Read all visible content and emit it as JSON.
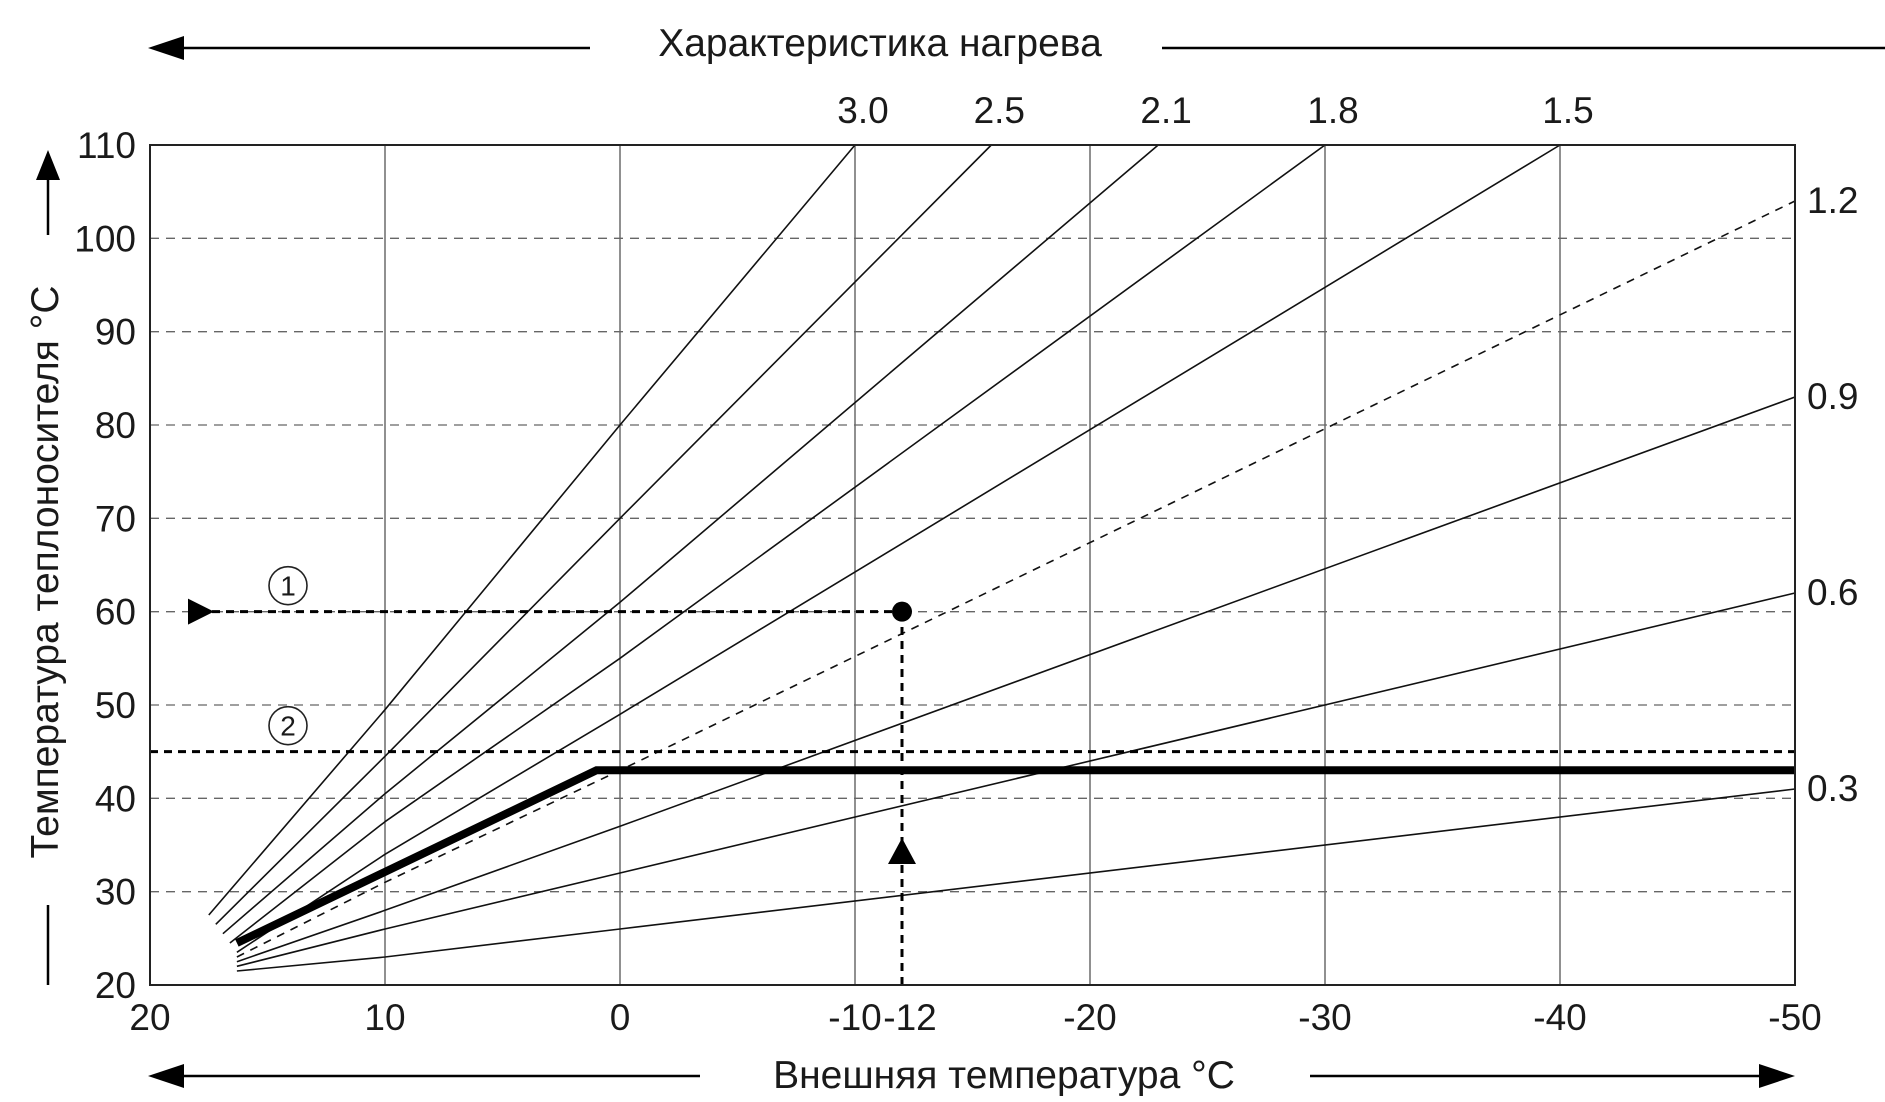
{
  "chart_data": {
    "type": "line",
    "title": "Характеристика нагрева",
    "xlabel": "Внешняя температура °C",
    "ylabel": "Температура теплоносителя °C",
    "xlim": [
      20,
      -50
    ],
    "ylim": [
      20,
      110
    ],
    "x_ticks": [
      20,
      10,
      0,
      -10,
      -20,
      -30,
      -40,
      -50
    ],
    "x_tick_labels": [
      "20",
      "10",
      "0",
      "-10",
      "-20",
      "-30",
      "-40",
      "-50"
    ],
    "extra_x_tick": {
      "value": -12,
      "label": "-12"
    },
    "y_ticks": [
      20,
      30,
      40,
      50,
      60,
      70,
      80,
      90,
      100,
      110
    ],
    "y_tick_labels": [
      "20",
      "30",
      "40",
      "50",
      "60",
      "70",
      "80",
      "90",
      "100",
      "110"
    ],
    "grid": true,
    "series": [
      {
        "name": "3.0",
        "label_position": "top",
        "style": "solid",
        "points": [
          [
            17.5,
            27.5
          ],
          [
            10,
            49.5
          ],
          [
            0,
            80
          ],
          [
            -10,
            110
          ]
        ]
      },
      {
        "name": "2.5",
        "label_position": "top",
        "style": "solid",
        "points": [
          [
            17.2,
            26.5
          ],
          [
            10,
            44.5
          ],
          [
            0,
            70
          ],
          [
            -15.8,
            110
          ]
        ]
      },
      {
        "name": "2.1",
        "label_position": "top",
        "style": "solid",
        "points": [
          [
            16.9,
            25.5
          ],
          [
            10,
            40.5
          ],
          [
            0,
            61
          ],
          [
            -22.9,
            110
          ]
        ]
      },
      {
        "name": "1.8",
        "label_position": "top",
        "style": "solid",
        "points": [
          [
            16.6,
            24.5
          ],
          [
            10,
            37.5
          ],
          [
            0,
            55
          ],
          [
            -30,
            110
          ]
        ]
      },
      {
        "name": "1.5",
        "label_position": "top",
        "style": "solid",
        "points": [
          [
            16.3,
            23.5
          ],
          [
            10,
            34
          ],
          [
            0,
            49
          ],
          [
            -40,
            110
          ]
        ]
      },
      {
        "name": "1.2",
        "label_position": "right",
        "style": "dashed",
        "points": [
          [
            16.3,
            23
          ],
          [
            10,
            31
          ],
          [
            0,
            43
          ],
          [
            -50,
            104
          ]
        ]
      },
      {
        "name": "0.9",
        "label_position": "right",
        "style": "solid",
        "points": [
          [
            16.3,
            22.5
          ],
          [
            10,
            28
          ],
          [
            0,
            37
          ],
          [
            -50,
            83
          ]
        ]
      },
      {
        "name": "0.6",
        "label_position": "right",
        "style": "solid",
        "points": [
          [
            16.3,
            22
          ],
          [
            10,
            26
          ],
          [
            0,
            32
          ],
          [
            -50,
            62
          ]
        ]
      },
      {
        "name": "0.3",
        "label_position": "right",
        "style": "solid",
        "points": [
          [
            16.3,
            21.5
          ],
          [
            10,
            23
          ],
          [
            0,
            26
          ],
          [
            -50,
            41
          ]
        ]
      }
    ],
    "limit_line": {
      "points": [
        [
          16.3,
          24.5
        ],
        [
          1,
          43
        ],
        [
          -50,
          43
        ]
      ]
    },
    "annotations": [
      {
        "label": "1",
        "type": "dashed-horizontal",
        "y": 60,
        "x_from": 20,
        "x_to": -12,
        "marker_at": [
          -12,
          60
        ]
      },
      {
        "label": "2",
        "type": "dashed-horizontal",
        "y": 45,
        "x_from": 20,
        "x_to": -50
      },
      {
        "label": "",
        "type": "dashed-vertical",
        "x": -12,
        "y_from": 20,
        "y_to": 60
      }
    ]
  }
}
